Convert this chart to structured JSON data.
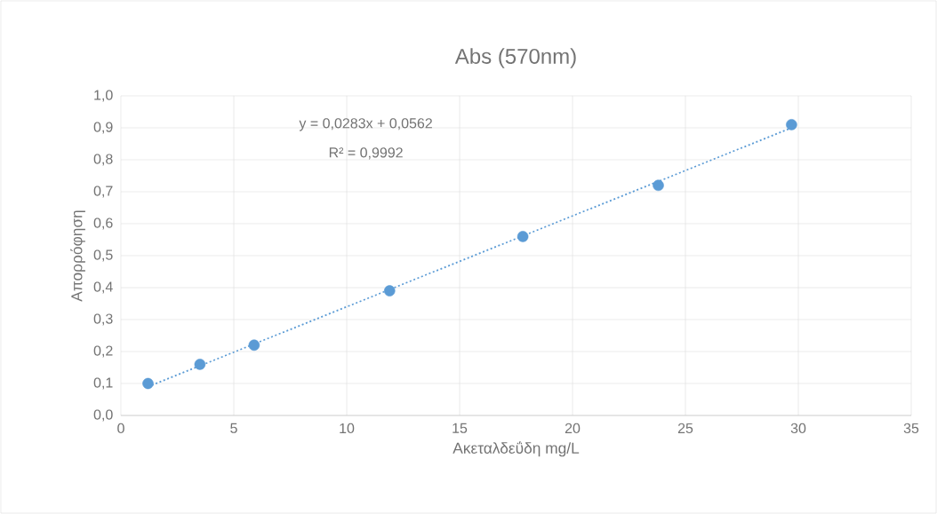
{
  "chart_data": {
    "type": "scatter",
    "title": "Abs (570nm)",
    "xlabel": "Ακεταλδεΰδη mg/L",
    "ylabel": "Απορρόφηση",
    "annotations": [
      "y = 0,0283x + 0,0562",
      "R² = 0,9992"
    ],
    "series": [
      {
        "color": "#5b9bd5",
        "marker": "circle",
        "x": [
          1.2,
          3.5,
          5.9,
          11.9,
          17.8,
          23.8,
          29.7
        ],
        "values": [
          0.1,
          0.16,
          0.22,
          0.39,
          0.56,
          0.72,
          0.91
        ]
      },
      {
        "type": "line",
        "color": "#5b9bd5",
        "marker": "none",
        "line_style": "dotted",
        "x": [
          1.2,
          29.7
        ],
        "values": [
          0.09,
          0.9
        ]
      }
    ],
    "xlim": [
      0,
      35
    ],
    "ylim": [
      0,
      1
    ],
    "xticks": [
      0,
      5,
      10,
      15,
      20,
      25,
      30,
      35
    ],
    "yticks": [
      {
        "value": 0,
        "label": "0,0"
      },
      {
        "value": 0.1,
        "label": "0,1"
      },
      {
        "value": 0.2,
        "label": "0,2"
      },
      {
        "value": 0.3,
        "label": "0,3"
      },
      {
        "value": 0.4,
        "label": "0,4"
      },
      {
        "value": 0.5,
        "label": "0,5"
      },
      {
        "value": 0.6,
        "label": "0,6"
      },
      {
        "value": 0.7,
        "label": "0,7"
      },
      {
        "value": 0.8,
        "label": "0,8"
      },
      {
        "value": 0.9,
        "label": "0,9"
      },
      {
        "value": 1,
        "label": "1,0"
      }
    ],
    "grid": true
  }
}
